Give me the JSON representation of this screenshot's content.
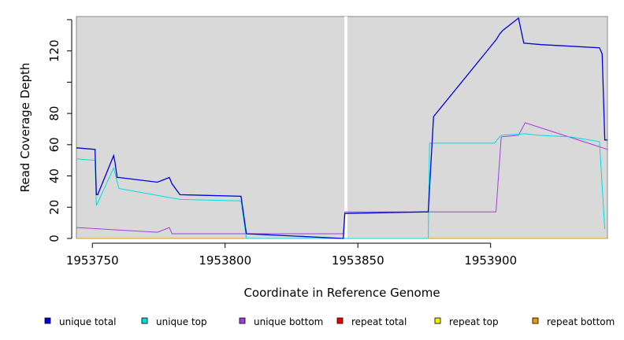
{
  "chart_data": {
    "type": "line",
    "xlabel": "Coordinate in Reference Genome",
    "ylabel": "Read Coverage Depth",
    "xlim": [
      1953744,
      1953944
    ],
    "ylim": [
      0,
      142
    ],
    "xticks": [
      1953750,
      1953800,
      1953850,
      1953900
    ],
    "yticks": [
      0,
      20,
      40,
      60,
      80,
      100,
      120,
      140
    ],
    "ytick_labels": [
      "0",
      "20",
      "40",
      "60",
      "80",
      "",
      "120",
      ""
    ],
    "gap_x": 1953845.5,
    "background": "#d9d9d9",
    "legend_position": "bottom",
    "series": [
      {
        "name": "unique total",
        "color": "#0000dd",
        "x": [
          1953744,
          1953751,
          1953751.5,
          1953752,
          1953758,
          1953758.5,
          1953759.3,
          1953760,
          1953774.5,
          1953779,
          1953780,
          1953783,
          1953806,
          1953808,
          1953844.5,
          1953845.1,
          1953876.5,
          1953878.5,
          1953902,
          1953903.5,
          1953904.5,
          1953910.5,
          1953912.5,
          1953919,
          1953930,
          1953941,
          1953942,
          1953943,
          1953944
        ],
        "y": [
          58,
          57,
          28,
          28,
          53,
          49,
          39,
          39,
          36,
          39,
          35,
          28,
          27,
          3,
          0,
          16,
          17,
          78,
          127,
          131,
          133,
          141,
          125,
          124,
          123,
          122,
          118,
          63,
          63
        ]
      },
      {
        "name": "unique top",
        "color": "#00dddd",
        "x": [
          1953744,
          1953751,
          1953751.5,
          1953758,
          1953760,
          1953783,
          1953806,
          1953808,
          1953845.1,
          1953876.5,
          1953877,
          1953901.5,
          1953902.8,
          1953904,
          1953913,
          1953918,
          1953930,
          1953941,
          1953943
        ],
        "y": [
          51,
          50,
          21,
          45,
          32,
          25,
          24,
          0,
          0,
          0,
          61,
          61,
          64,
          66,
          67,
          66,
          65,
          62,
          6
        ]
      },
      {
        "name": "unique bottom",
        "color": "#a040e0",
        "x": [
          1953744,
          1953774.5,
          1953779,
          1953780,
          1953808,
          1953844.5,
          1953845.1,
          1953902,
          1953904,
          1953910.5,
          1953913,
          1953944
        ],
        "y": [
          7,
          4,
          7,
          3,
          3,
          3,
          17,
          17,
          65,
          66,
          74,
          57
        ]
      },
      {
        "name": "repeat total",
        "color": "#ee0000",
        "x": [
          1953744,
          1953944
        ],
        "y": [
          0,
          0
        ]
      },
      {
        "name": "repeat top",
        "color": "#eeee00",
        "x": [
          1953744,
          1953944
        ],
        "y": [
          0,
          0
        ]
      },
      {
        "name": "repeat bottom",
        "color": "#ee9900",
        "x": [
          1953744,
          1953944
        ],
        "y": [
          0,
          0
        ]
      }
    ]
  }
}
